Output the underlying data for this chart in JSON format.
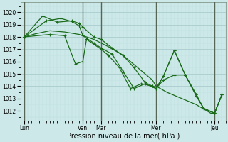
{
  "title": "Pression niveau de la mer( hPa )",
  "bg_color": "#cce8e8",
  "grid_major_color": "#aacccc",
  "grid_minor_color": "#bbdddd",
  "line_color": "#1a6b1a",
  "ylim": [
    1011.2,
    1020.8
  ],
  "yticks": [
    1012,
    1013,
    1014,
    1015,
    1016,
    1017,
    1018,
    1019,
    1020
  ],
  "xlim": [
    0,
    28
  ],
  "xtick_positions": [
    0.5,
    8.5,
    11.0,
    18.5,
    26.5
  ],
  "xtick_labels": [
    "Lun",
    "Ven",
    "Mar",
    "Mer",
    "Jeu"
  ],
  "vlines": [
    0.5,
    8.5,
    11.0,
    18.5,
    26.5
  ],
  "series_smooth_x": [
    0.5,
    2,
    4,
    6,
    8,
    8.5,
    10,
    11,
    12,
    14,
    16,
    18,
    18.5,
    20,
    22,
    24,
    26,
    26.5,
    27.5
  ],
  "series_smooth_y": [
    1018.0,
    1018.25,
    1018.5,
    1018.4,
    1018.2,
    1018.1,
    1017.8,
    1017.5,
    1017.2,
    1016.5,
    1015.5,
    1014.5,
    1014.0,
    1013.5,
    1013.0,
    1012.5,
    1011.8,
    1011.8,
    1013.3
  ],
  "series1_x": [
    0.5,
    3,
    5,
    7,
    8,
    8.5,
    10,
    11,
    12.5,
    14,
    15.5,
    17,
    18,
    18.5,
    19.5,
    21,
    22.5,
    24,
    25,
    26.5,
    27.5
  ],
  "series1_y": [
    1018.0,
    1019.7,
    1019.2,
    1019.3,
    1019.1,
    1018.8,
    1018.0,
    1017.8,
    1017.1,
    1016.5,
    1015.5,
    1014.3,
    1014.0,
    1013.8,
    1014.5,
    1014.9,
    1014.9,
    1013.2,
    1012.2,
    1011.8,
    1013.3
  ],
  "series2_x": [
    0.5,
    3.5,
    5.5,
    7,
    8,
    8.5,
    10,
    11,
    12.5,
    14,
    15.5,
    17,
    18.5,
    19.5,
    21,
    22.5,
    24,
    25,
    26.5,
    27.5
  ],
  "series2_y": [
    1018.0,
    1019.3,
    1019.5,
    1019.25,
    1018.9,
    1018.1,
    1017.5,
    1017.1,
    1016.6,
    1015.2,
    1013.8,
    1014.2,
    1013.8,
    1014.8,
    1016.9,
    1014.9,
    1013.3,
    1012.2,
    1011.8,
    1013.3
  ],
  "series3_x": [
    0.5,
    4,
    6,
    7.5,
    8.5,
    9,
    11,
    12,
    13.5,
    15,
    16.5,
    18.0,
    18.5,
    19.5,
    21,
    22.5,
    24,
    25,
    26.5,
    27.5
  ],
  "series3_y": [
    1018.0,
    1018.2,
    1018.1,
    1015.8,
    1016.0,
    1017.8,
    1017.0,
    1016.5,
    1015.5,
    1013.8,
    1014.2,
    1014.0,
    1013.8,
    1014.8,
    1016.9,
    1014.9,
    1013.3,
    1012.2,
    1011.8,
    1013.3
  ]
}
